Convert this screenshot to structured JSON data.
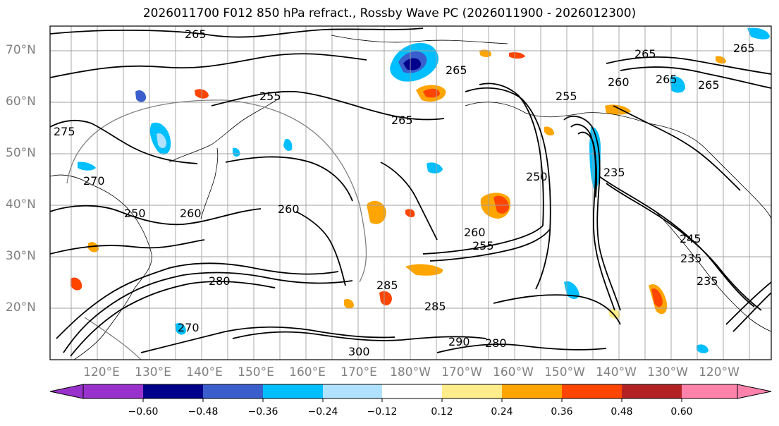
{
  "title": "2026011700 F012 850 hPa refract., Rossby Wave PC (2026011900 - 2026012300)",
  "lat_labels": [
    "70°N",
    "60°N",
    "50°N",
    "40°N",
    "30°N",
    "20°N"
  ],
  "lon_labels": [
    "120°E",
    "130°E",
    "140°E",
    "150°E",
    "160°E",
    "170°E",
    "180°W",
    "170°W",
    "160°W",
    "150°W",
    "140°W",
    "130°W",
    "120°W"
  ],
  "contour_labels": [
    "265",
    "265",
    "265",
    "265",
    "265",
    "260",
    "255",
    "255",
    "265",
    "275",
    "270",
    "250",
    "260",
    "260",
    "260",
    "255",
    "235",
    "245",
    "235",
    "235",
    "285",
    "285",
    "280",
    "300",
    "290",
    "280",
    "250",
    "265",
    "270"
  ],
  "colorbar": {
    "ticks": [
      "−0.60",
      "−0.48",
      "−0.36",
      "−0.24",
      "−0.12",
      "0.12",
      "0.24",
      "0.36",
      "0.48",
      "0.60"
    ],
    "colors": [
      "#9932cc",
      "#00008b",
      "#3a5fcd",
      "#00bfff",
      "#b0e2ff",
      "#ffffff",
      "#ffec8b",
      "#ffa500",
      "#ff4500",
      "#b22222",
      "#ff82ab"
    ]
  },
  "colors": {
    "contour": "#000000",
    "grid": "#a0a0a0",
    "tick_label": "#808080"
  }
}
